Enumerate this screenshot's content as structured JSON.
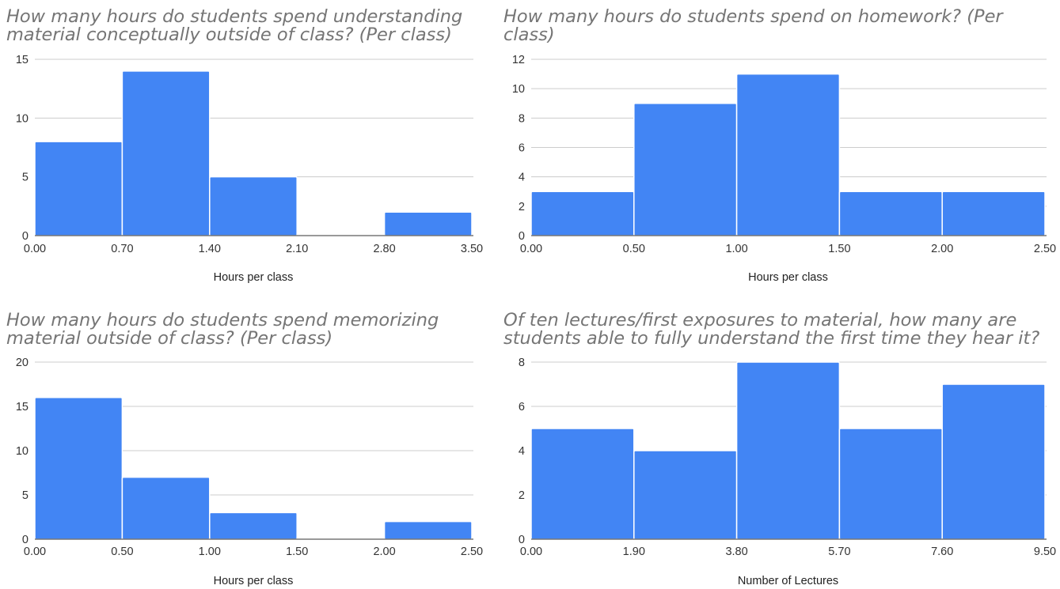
{
  "chart_data": [
    {
      "type": "bar",
      "title_lines": [
        "How many hours do students spend understanding",
        "material conceptually outside of class? (Per class)"
      ],
      "xlabel": "Hours per class",
      "ylabel": "",
      "bin_edges": [
        0.0,
        0.7,
        1.4,
        2.1,
        2.8,
        3.5
      ],
      "x_tick_labels": [
        "0.00",
        "0.70",
        "1.40",
        "2.10",
        "2.80",
        "3.50"
      ],
      "values": [
        8,
        14,
        5,
        0,
        2
      ],
      "ylim": [
        0,
        15
      ],
      "y_ticks": [
        0,
        5,
        10,
        15
      ],
      "grid": true,
      "color": "#4285f4"
    },
    {
      "type": "bar",
      "title_lines": [
        "How many hours do students spend on homework? (Per",
        "class)"
      ],
      "xlabel": "Hours per class",
      "ylabel": "",
      "bin_edges": [
        0.0,
        0.5,
        1.0,
        1.5,
        2.0,
        2.5
      ],
      "x_tick_labels": [
        "0.00",
        "0.50",
        "1.00",
        "1.50",
        "2.00",
        "2.50"
      ],
      "values": [
        3,
        9,
        11,
        3,
        3
      ],
      "ylim": [
        0,
        12
      ],
      "y_ticks": [
        0,
        2,
        4,
        6,
        8,
        10,
        12
      ],
      "grid": true,
      "color": "#4285f4"
    },
    {
      "type": "bar",
      "title_lines": [
        "How many hours do students spend memorizing",
        "material outside of class? (Per class)"
      ],
      "xlabel": "Hours per class",
      "ylabel": "",
      "bin_edges": [
        0.0,
        0.5,
        1.0,
        1.5,
        2.0,
        2.5
      ],
      "x_tick_labels": [
        "0.00",
        "0.50",
        "1.00",
        "1.50",
        "2.00",
        "2.50"
      ],
      "values": [
        16,
        7,
        3,
        0,
        2
      ],
      "ylim": [
        0,
        20
      ],
      "y_ticks": [
        0,
        5,
        10,
        15,
        20
      ],
      "grid": true,
      "color": "#4285f4"
    },
    {
      "type": "bar",
      "title_lines": [
        "Of ten lectures/first exposures to material, how many are",
        "students able to fully understand the first time they hear it?"
      ],
      "xlabel": "Number of Lectures",
      "ylabel": "",
      "bin_edges": [
        0.0,
        1.9,
        3.8,
        5.7,
        7.6,
        9.5
      ],
      "x_tick_labels": [
        "0.00",
        "1.90",
        "3.80",
        "5.70",
        "7.60",
        "9.50"
      ],
      "values": [
        5,
        4,
        8,
        5,
        7
      ],
      "ylim": [
        0,
        8
      ],
      "y_ticks": [
        0,
        2,
        4,
        6,
        8
      ],
      "grid": true,
      "color": "#4285f4"
    }
  ]
}
